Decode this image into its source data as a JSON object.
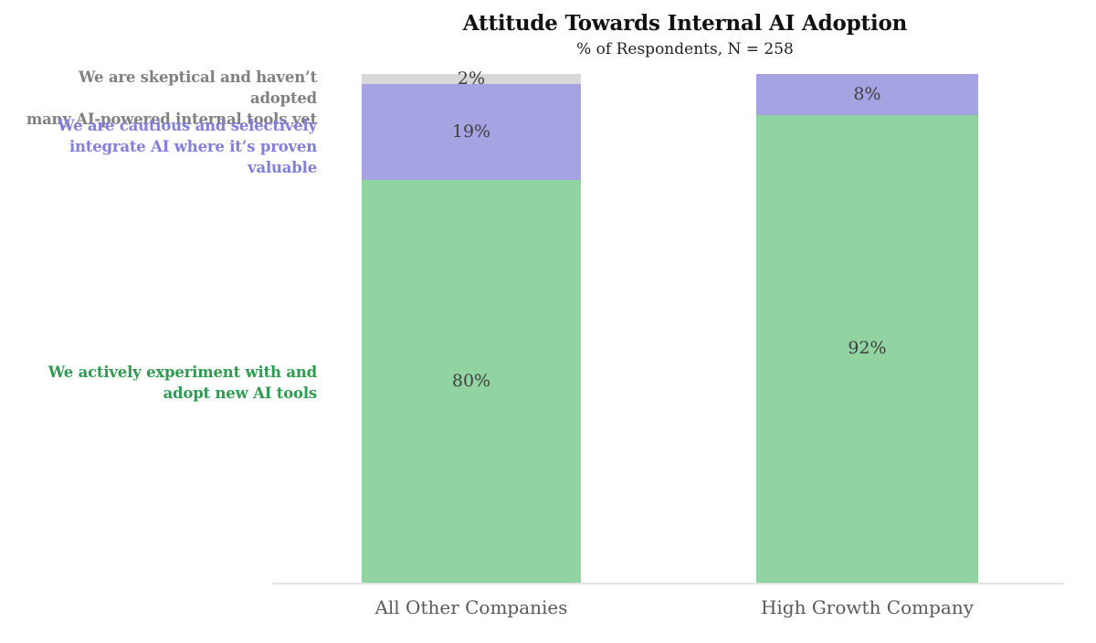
{
  "chart_data": {
    "type": "bar",
    "stacked": true,
    "title": "Attitude Towards Internal AI Adoption",
    "subtitle": "% of Respondents, N = 258",
    "categories": [
      "All Other Companies",
      "High Growth Company"
    ],
    "series": [
      {
        "name": "We are skeptical and haven’t adopted many AI-powered internal tools yet",
        "label_lines": [
          "We are skeptical and haven’t adopted",
          "many AI-powered internal tools yet"
        ],
        "color": "#d8d8d8",
        "text_color": "#808080",
        "values": [
          2,
          0
        ],
        "labels": [
          "2%",
          ""
        ]
      },
      {
        "name": "We are cautious and selectively integrate AI where it’s proven valuable",
        "label_lines": [
          "We are cautious and selectively",
          "integrate AI where it’s proven valuable"
        ],
        "color": "#a5a3e2",
        "text_color": "#827eda",
        "values": [
          19,
          8
        ],
        "labels": [
          "19%",
          "8%"
        ]
      },
      {
        "name": "We actively experiment with and adopt new AI tools",
        "label_lines": [
          "We actively experiment with and",
          "adopt new AI tools"
        ],
        "color": "#92d3a2",
        "text_color": "#2f9b50",
        "values": [
          80,
          92
        ],
        "labels": [
          "80%",
          "92%"
        ]
      }
    ],
    "value_label_color": "#404040",
    "ylim": [
      0,
      100
    ],
    "grid": false,
    "legend_position": "left"
  }
}
